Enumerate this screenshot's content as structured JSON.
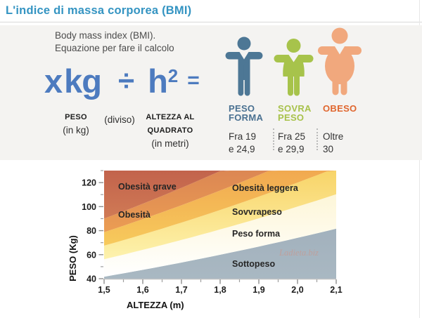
{
  "window": {
    "title": "L'indice di massa corporea (BMI)"
  },
  "intro": {
    "line1": "Body mass index (BMI).",
    "line2": "Equazione per fare il calcolo"
  },
  "formula": {
    "x": "x",
    "kg": "kg",
    "divide_sign": "÷",
    "h": "h",
    "exponent": "2",
    "equals_sign": "=",
    "color": "#4d7bbf",
    "numerator_label": "PESO",
    "numerator_unit": "(in kg)",
    "operator_label": "(diviso)",
    "denominator_label_line1": "ALTEZZA AL",
    "denominator_label_line2": "QUADRATO",
    "denominator_unit": "(in metri)"
  },
  "bmi_categories": [
    {
      "name_line1": "PESO",
      "name_line2": "FORMA",
      "range_line1": "Fra 19",
      "range_line2": "e 24,9",
      "color": "#4a7191",
      "figure_color": "#4d7795"
    },
    {
      "name_line1": "SOVRA",
      "name_line2": "PESO",
      "range_line1": "Fra 25",
      "range_line2": "e 29,9",
      "color": "#a8c24b",
      "figure_color": "#a7c34b"
    },
    {
      "name_line1": "OBESO",
      "name_line2": "",
      "range_line1": "Oltre",
      "range_line2": "30",
      "color": "#e0662e",
      "figure_color": "#f1a87d"
    }
  ],
  "chart_data": {
    "type": "area",
    "title": "",
    "xlabel": "ALTEZZA (m)",
    "ylabel": "PESO (Kg)",
    "xlim": [
      1.5,
      2.1
    ],
    "ylim": [
      40,
      130
    ],
    "grid": false,
    "x_ticks": [
      1.5,
      1.6,
      1.7,
      1.8,
      1.9,
      2.0,
      2.1
    ],
    "x_tick_labels": [
      "1,5",
      "1,6",
      "1,7",
      "1,8",
      "1,9",
      "2,0",
      "2,1"
    ],
    "x_minor_ticks": [
      1.55,
      1.65,
      1.75,
      1.85,
      1.95,
      2.05
    ],
    "y_ticks": [
      40,
      60,
      80,
      100,
      120
    ],
    "y_tick_labels": [
      "40",
      "60",
      "80",
      "100",
      "120"
    ],
    "y_minor_ticks": [
      50,
      70,
      90,
      110,
      130
    ],
    "bands": [
      {
        "label": "Sottopeso",
        "bmi_min": 0,
        "bmi_max": 18.5,
        "color_top": "#a2b1bd",
        "color_bottom": "#a9b8c2"
      },
      {
        "label": "Peso forma",
        "bmi_min": 18.5,
        "bmi_max": 25,
        "color_top": "#fdf6d8",
        "color_bottom": "#ffffff"
      },
      {
        "label": "Sovvrapeso",
        "bmi_min": 25,
        "bmi_max": 30,
        "color_top": "#f8d469",
        "color_bottom": "#fdf2ad"
      },
      {
        "label": "Obesità leggera",
        "bmi_min": 30,
        "bmi_max": 35,
        "color_top": "#f1a950",
        "color_bottom": "#f7ca5c"
      },
      {
        "label": "Obesità",
        "bmi_min": 35,
        "bmi_max": 40,
        "color_top": "#dc8753",
        "color_bottom": "#eb9d53"
      },
      {
        "label": "Obesità grave",
        "bmi_min": 40,
        "bmi_max": 99,
        "color_top": "#c2634c",
        "color_bottom": "#d07a55"
      }
    ],
    "watermark": "Ladieta.biz"
  }
}
